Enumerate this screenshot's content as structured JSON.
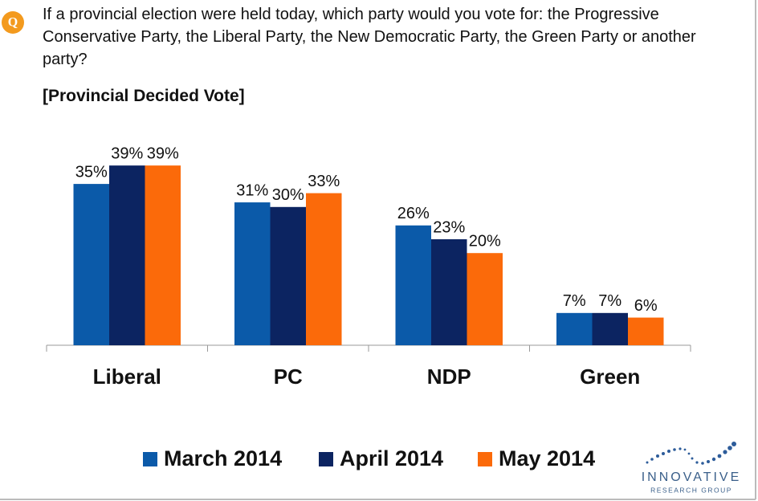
{
  "question_icon": "Q",
  "logo": {
    "name": "INNOVATIVE",
    "tagline": "RESEARCH GROUP"
  },
  "chart_data": {
    "type": "bar",
    "title": "If a provincial election were held today, which party would you vote for: the Progressive Conservative Party, the Liberal Party, the New Democratic Party, the Green Party or another party?",
    "subtitle": "[Provincial Decided Vote]",
    "categories": [
      "Liberal",
      "PC",
      "NDP",
      "Green"
    ],
    "series": [
      {
        "name": "March 2014",
        "color": "#0b5aa9",
        "values": [
          35,
          31,
          26,
          7
        ],
        "value_labels": [
          "35%",
          "31%",
          "26%",
          "7%"
        ]
      },
      {
        "name": "April 2014",
        "color": "#0c2461",
        "values": [
          39,
          30,
          23,
          7
        ],
        "value_labels": [
          "39%",
          "30%",
          "23%",
          "7%"
        ]
      },
      {
        "name": "May 2014",
        "color": "#fb6a0a",
        "values": [
          39,
          33,
          20,
          6
        ],
        "value_labels": [
          "39%",
          "33%",
          "20%",
          "6%"
        ]
      }
    ]
  }
}
